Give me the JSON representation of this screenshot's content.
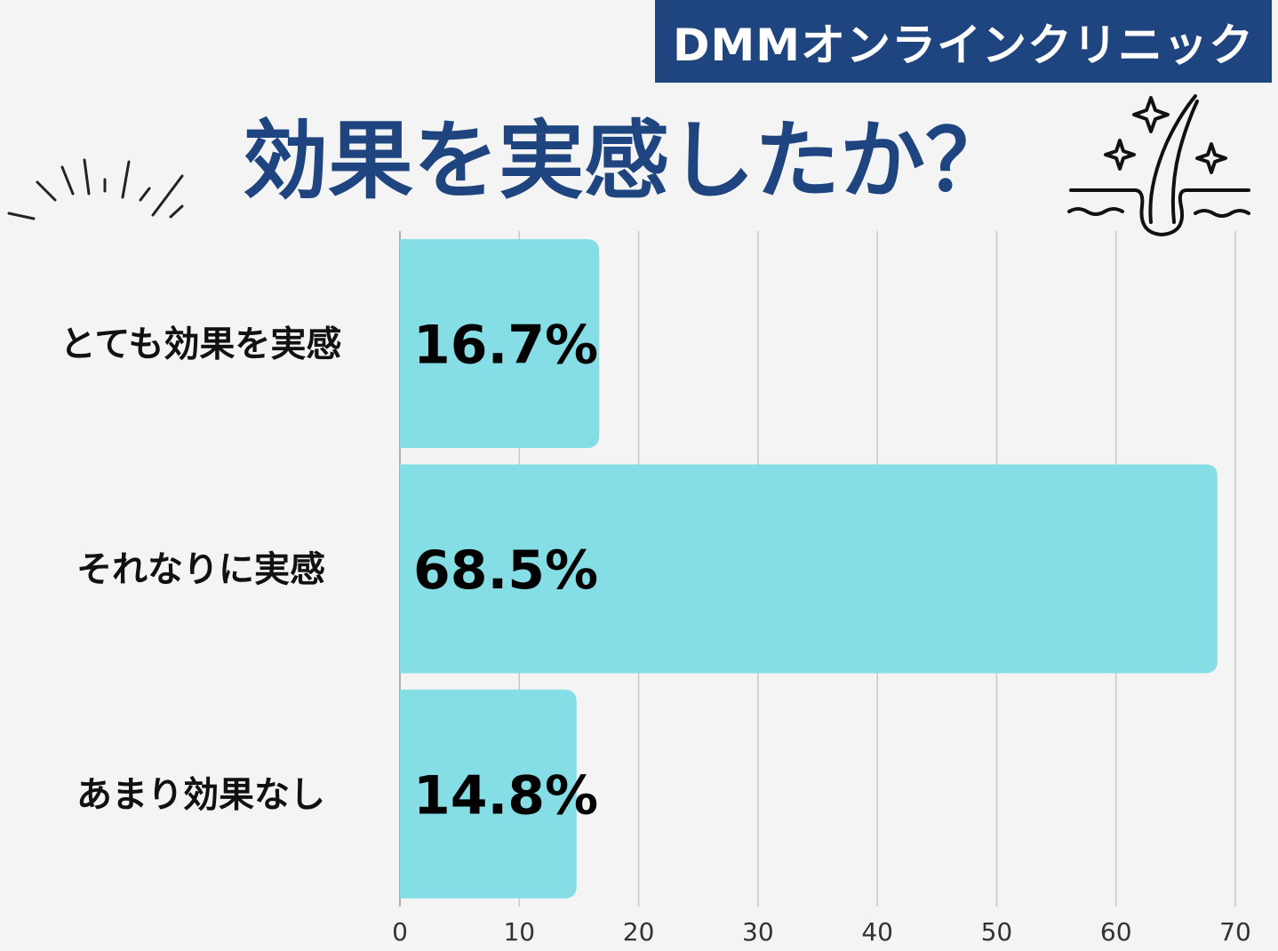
{
  "brand": {
    "label": "DMMオンラインクリニック"
  },
  "title": "効果を実感したか？",
  "icons": [
    "burst-lines-icon",
    "hair-follicle-sparkle-icon"
  ],
  "colors": {
    "brand_bg": "#1f4580",
    "title": "#1f4580",
    "bar": "#85dee5",
    "grid": "#c8c8c8",
    "background": "#f4f4f4"
  },
  "chart_data": {
    "type": "bar",
    "orientation": "horizontal",
    "categories": [
      "とても効果を実感",
      "それなりに実感",
      "あまり効果なし"
    ],
    "values": [
      16.7,
      68.5,
      14.8
    ],
    "value_labels": [
      "16.7%",
      "68.5%",
      "14.8%"
    ],
    "xlim": [
      0,
      70
    ],
    "xticks": [
      "0",
      "10",
      "20",
      "30",
      "40",
      "50",
      "60",
      "70"
    ],
    "grid": true
  }
}
